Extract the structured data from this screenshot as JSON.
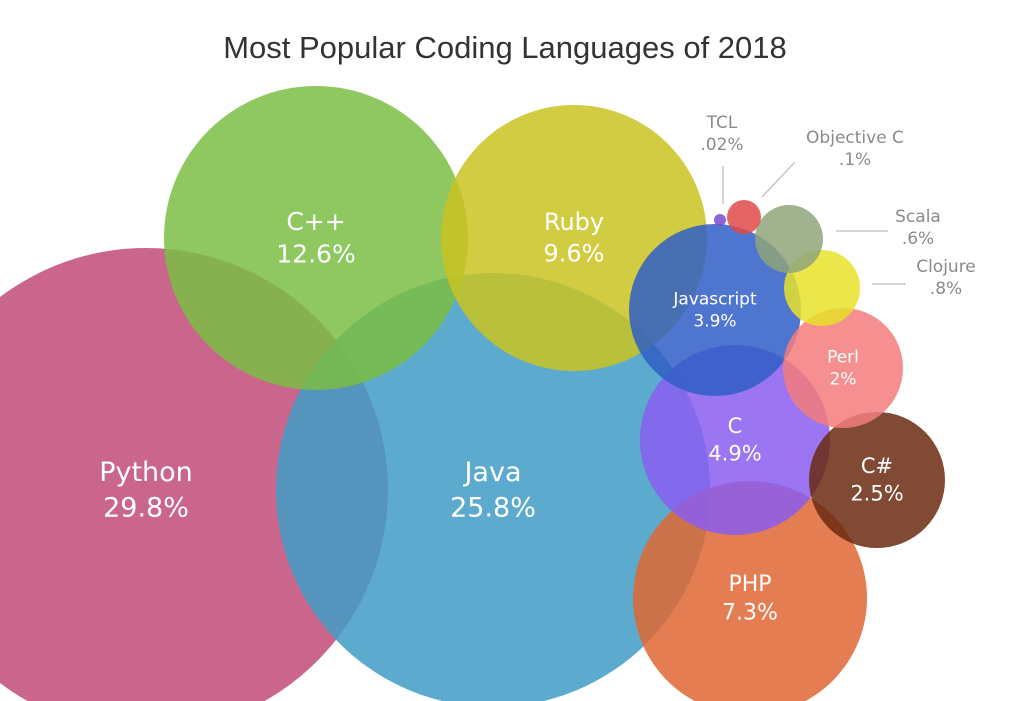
{
  "chart_data": {
    "type": "bubble",
    "title": "Most Popular Coding Languages of 2018",
    "series": [
      {
        "name": "Python",
        "label": "29.8%",
        "value": 29.8,
        "color": "#c14a78"
      },
      {
        "name": "Java",
        "label": "25.8%",
        "value": 25.8,
        "color": "#3f9cc6"
      },
      {
        "name": "C++",
        "label": "12.6%",
        "value": 12.6,
        "color": "#7bbd44"
      },
      {
        "name": "Ruby",
        "label": "9.6%",
        "value": 9.6,
        "color": "#c9c321"
      },
      {
        "name": "PHP",
        "label": "7.3%",
        "value": 7.3,
        "color": "#df6734"
      },
      {
        "name": "C",
        "label": "4.9%",
        "value": 4.9,
        "color": "#8a5df0"
      },
      {
        "name": "Javascript",
        "label": "3.9%",
        "value": 3.9,
        "color": "#2f5ec6"
      },
      {
        "name": "C#",
        "label": "2.5%",
        "value": 2.5,
        "color": "#6a2a10"
      },
      {
        "name": "Perl",
        "label": "2%",
        "value": 2,
        "color": "#f47c7c"
      },
      {
        "name": "Clojure",
        "label": ".8%",
        "value": 0.8,
        "color": "#e8e22a"
      },
      {
        "name": "Scala",
        "label": ".6%",
        "value": 0.6,
        "color": "#8fa57a"
      },
      {
        "name": "Objective C",
        "label": ".1%",
        "value": 0.1,
        "color": "#e04a4a"
      },
      {
        "name": "TCL",
        "label": ".02%",
        "value": 0.02,
        "color": "#7a4ad0"
      }
    ]
  }
}
